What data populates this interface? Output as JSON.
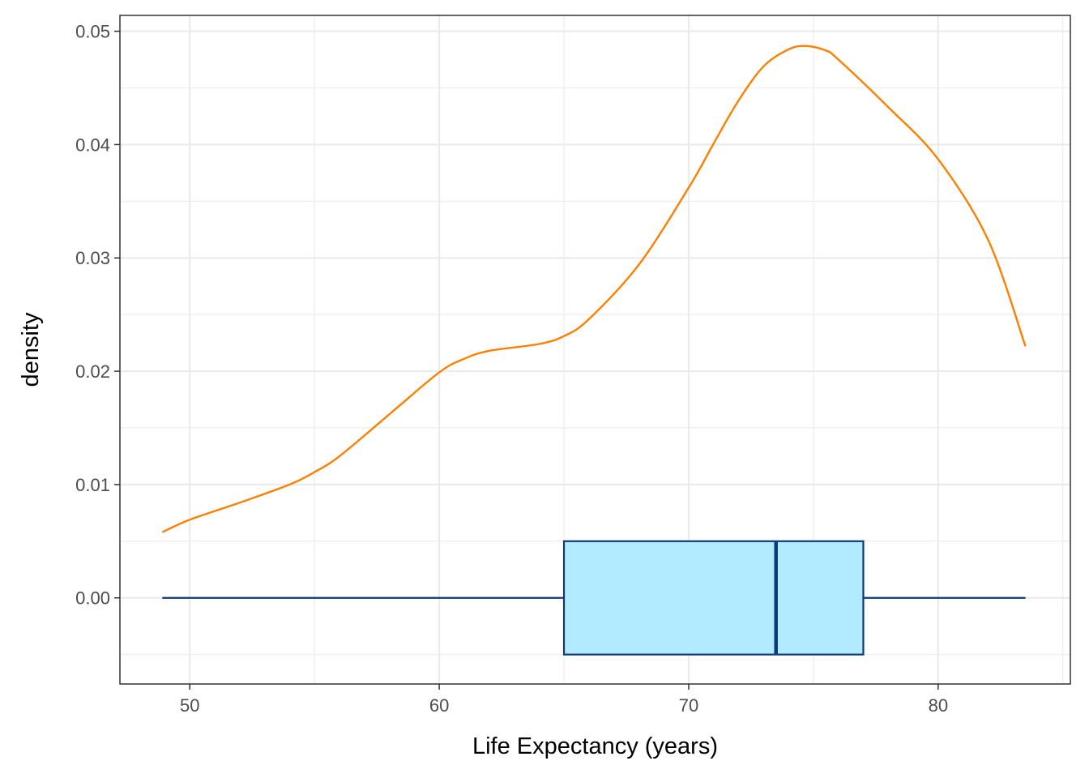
{
  "chart_data": {
    "type": "density+boxplot",
    "xlabel": "Life Expectancy (years)",
    "ylabel": "density",
    "xlim": [
      47.2,
      85.3
    ],
    "ylim": [
      -0.0076,
      0.0514
    ],
    "x_ticks": [
      50,
      60,
      70,
      80
    ],
    "x_tick_labels": [
      "50",
      "60",
      "70",
      "80"
    ],
    "y_ticks": [
      0.0,
      0.01,
      0.02,
      0.03,
      0.04,
      0.05
    ],
    "y_tick_labels": [
      "0.00",
      "0.01",
      "0.02",
      "0.03",
      "0.04",
      "0.05"
    ],
    "grid": true,
    "density": {
      "color": "#ff7f00",
      "x": [
        48.9,
        50.0,
        52.0,
        54.0,
        55.0,
        56.0,
        58.0,
        60.0,
        61.0,
        62.0,
        64.0,
        65.0,
        66.0,
        68.0,
        70.0,
        71.0,
        72.0,
        73.0,
        74.0,
        74.7,
        75.5,
        76.0,
        78.0,
        80.0,
        82.0,
        83.5
      ],
      "y": [
        0.0058,
        0.0069,
        0.0084,
        0.01,
        0.0111,
        0.0125,
        0.0162,
        0.0199,
        0.0211,
        0.0218,
        0.0224,
        0.0231,
        0.0246,
        0.0294,
        0.0362,
        0.0401,
        0.0439,
        0.0469,
        0.0484,
        0.0487,
        0.0483,
        0.0475,
        0.0433,
        0.0387,
        0.0316,
        0.0222
      ]
    },
    "boxplot": {
      "fill": "#b2ebff",
      "stroke": "#0d3b7a",
      "min": 48.9,
      "q1": 65.0,
      "median": 73.5,
      "q3": 77.0,
      "max": 83.5,
      "center_y": 0.0,
      "half_height": 0.005
    }
  }
}
